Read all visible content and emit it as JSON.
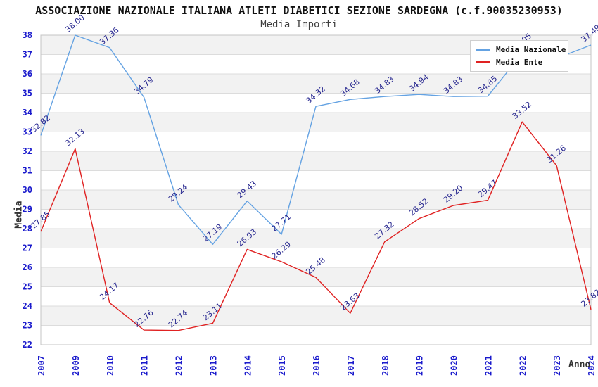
{
  "chart": {
    "title": "ASSOCIAZIONE NAZIONALE ITALIANA ATLETI DIABETICI SEZIONE SARDEGNA (c.f.90035230953)",
    "subtitle": "Media Importi",
    "xlabel": "Anno",
    "ylabel": "Media"
  },
  "legend": {
    "items": [
      {
        "label": "Media Nazionale",
        "color": "#64a2e2"
      },
      {
        "label": "Media Ente",
        "color": "#e02222"
      }
    ]
  },
  "chart_data": {
    "type": "line",
    "title": "ASSOCIAZIONE NAZIONALE ITALIANA ATLETI DIABETICI SEZIONE SARDEGNA (c.f.90035230953)",
    "subtitle": "Media Importi",
    "xlabel": "Anno",
    "ylabel": "Media",
    "categories": [
      "2007",
      "2009",
      "2010",
      "2011",
      "2012",
      "2013",
      "2014",
      "2015",
      "2016",
      "2017",
      "2018",
      "2019",
      "2020",
      "2021",
      "2022",
      "2023",
      "2024"
    ],
    "series": [
      {
        "name": "Media Nazionale",
        "color": "#64a2e2",
        "values": [
          32.82,
          38.0,
          37.36,
          34.79,
          29.24,
          27.19,
          29.43,
          27.71,
          34.32,
          34.68,
          34.83,
          34.94,
          34.83,
          34.85,
          37.05,
          36.8,
          37.49
        ],
        "labels": [
          "32.82",
          "38.00",
          "37.36",
          "34.79",
          "29.24",
          "27.19",
          "29.43",
          "27.71",
          "34.32",
          "34.68",
          "34.83",
          "34.94",
          "34.83",
          "34.85",
          "37.05",
          null,
          "37.49"
        ]
      },
      {
        "name": "Media Ente",
        "color": "#e02222",
        "values": [
          27.85,
          32.13,
          24.17,
          22.76,
          22.74,
          23.11,
          26.93,
          26.29,
          25.48,
          23.63,
          27.32,
          28.52,
          29.2,
          29.47,
          33.52,
          31.26,
          23.82
        ],
        "labels": [
          "27.85",
          "32.13",
          "24.17",
          "22.76",
          "22.74",
          "23.11",
          "26.93",
          "26.29",
          "25.48",
          "23.63",
          "27.32",
          "28.52",
          "29.20",
          "29.47",
          "33.52",
          "31.26",
          "23.82"
        ]
      }
    ],
    "ylim": [
      22,
      38
    ],
    "y_ticks": [
      22,
      23,
      24,
      25,
      26,
      27,
      28,
      29,
      30,
      31,
      32,
      33,
      34,
      35,
      36,
      37,
      38
    ],
    "grid": true,
    "band_colors": [
      "#f2f2f2",
      "#ffffff"
    ],
    "grid_color": "#dcdcdc",
    "border_color": "#c4c4c4",
    "legend_position": "top-right"
  }
}
